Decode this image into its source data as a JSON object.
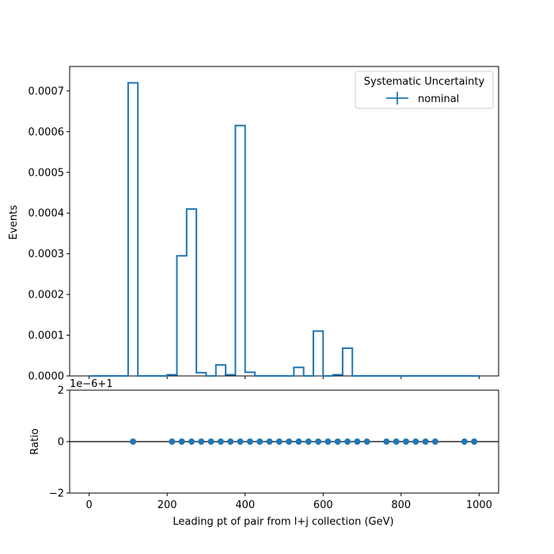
{
  "chart_data": [
    {
      "panel": "main",
      "type": "step-histogram",
      "ylabel": "Events",
      "xlim": [
        -50,
        1050
      ],
      "ylim": [
        0,
        0.00076
      ],
      "yticks": [
        "0.0000",
        "0.0001",
        "0.0002",
        "0.0003",
        "0.0004",
        "0.0005",
        "0.0006",
        "0.0007"
      ],
      "ytick_values": [
        0,
        0.0001,
        0.0002,
        0.0003,
        0.0004,
        0.0005,
        0.0006,
        0.0007
      ],
      "bin_width": 25,
      "bin_edges_start": 0,
      "series": [
        {
          "name": "nominal",
          "color": "#1f77b4",
          "values": [
            0,
            0,
            0,
            0,
            0.00072,
            0,
            0,
            0,
            3e-06,
            0.000295,
            0.00041,
            8e-06,
            0,
            2.7e-05,
            3e-06,
            0.000615,
            9e-06,
            0,
            0,
            0,
            0,
            2.1e-05,
            0,
            0.00011,
            0,
            3e-06,
            6.8e-05,
            0,
            0,
            0,
            0,
            0,
            0,
            0,
            0,
            0,
            0,
            0,
            0,
            0
          ]
        }
      ],
      "legend": {
        "title": "Systematic Uncertainty",
        "entries": [
          "nominal"
        ],
        "placement": "upper-right"
      }
    },
    {
      "panel": "ratio",
      "type": "scatter",
      "ylabel": "Ratio",
      "xlabel": "Leading pt of pair from l+j collection (GeV)",
      "offset_text": "1e−6+1",
      "xlim": [
        -50,
        1050
      ],
      "ylim": [
        -2,
        2
      ],
      "xticks": [
        "0",
        "200",
        "400",
        "600",
        "800",
        "1000"
      ],
      "xtick_values": [
        0,
        200,
        400,
        600,
        800,
        1000
      ],
      "yticks": [
        "−2",
        "0",
        "2"
      ],
      "ytick_values": [
        -2,
        0,
        2
      ],
      "reference_line": 0,
      "color": "#1f77b4",
      "x": [
        112.5,
        212.5,
        237.5,
        262.5,
        287.5,
        312.5,
        337.5,
        362.5,
        387.5,
        412.5,
        437.5,
        462.5,
        487.5,
        512.5,
        537.5,
        562.5,
        587.5,
        612.5,
        637.5,
        662.5,
        687.5,
        712.5,
        762.5,
        787.5,
        812.5,
        837.5,
        862.5,
        887.5,
        962.5,
        987.5
      ],
      "y": [
        0,
        0,
        0,
        0,
        0,
        0,
        0,
        0,
        0,
        0,
        0,
        0,
        0,
        0,
        0,
        0,
        0,
        0,
        0,
        0,
        0,
        0,
        0,
        0,
        0,
        0,
        0,
        0,
        0,
        0
      ]
    }
  ]
}
